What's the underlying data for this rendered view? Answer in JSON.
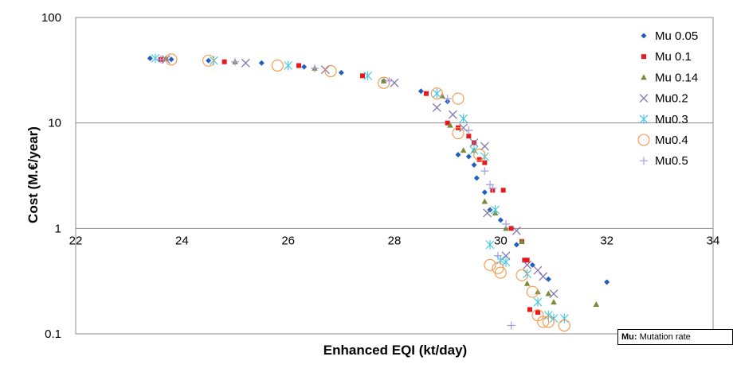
{
  "chart_data": {
    "type": "scatter",
    "title": "",
    "xlabel": "Enhanced EQI (kt/day)",
    "ylabel": "Cost (M.€/year)",
    "xlim": [
      22,
      34
    ],
    "ylim": [
      0.1,
      100
    ],
    "y_scale": "log",
    "x_ticks": [
      "22",
      "24",
      "26",
      "28",
      "30",
      "32",
      "34"
    ],
    "y_ticks": [
      "100",
      "10",
      "1",
      "0.1"
    ],
    "grid": "horizontal major gridlines",
    "legend_position": "top-right",
    "annotation": {
      "key": "Mu:",
      "text": " Mutation rate"
    },
    "series": [
      {
        "name": "Mu 0.05",
        "marker": "diamond",
        "color": "#1F5FBF",
        "points": [
          [
            23.4,
            41
          ],
          [
            23.8,
            40
          ],
          [
            24.5,
            39
          ],
          [
            25.5,
            37
          ],
          [
            26.3,
            34
          ],
          [
            27.0,
            30
          ],
          [
            27.8,
            25
          ],
          [
            28.5,
            20
          ],
          [
            29.0,
            16
          ],
          [
            29.2,
            5.0
          ],
          [
            29.4,
            4.8
          ],
          [
            29.5,
            4.0
          ],
          [
            29.55,
            3.0
          ],
          [
            29.7,
            2.2
          ],
          [
            29.8,
            1.5
          ],
          [
            30.0,
            1.2
          ],
          [
            30.3,
            0.7
          ],
          [
            30.6,
            0.45
          ],
          [
            30.9,
            0.33
          ],
          [
            32.0,
            0.31
          ]
        ]
      },
      {
        "name": "Mu 0.1",
        "marker": "square",
        "color": "#E8191E",
        "points": [
          [
            23.6,
            40
          ],
          [
            24.8,
            38
          ],
          [
            26.2,
            35
          ],
          [
            27.4,
            28
          ],
          [
            28.6,
            19
          ],
          [
            29.0,
            10
          ],
          [
            29.2,
            9.0
          ],
          [
            29.4,
            7.5
          ],
          [
            29.5,
            6.5
          ],
          [
            29.6,
            4.5
          ],
          [
            29.7,
            4.2
          ],
          [
            29.85,
            2.3
          ],
          [
            30.05,
            2.3
          ],
          [
            30.2,
            1.0
          ],
          [
            30.4,
            0.75
          ],
          [
            30.45,
            0.5
          ],
          [
            30.5,
            0.5
          ],
          [
            30.55,
            0.17
          ],
          [
            30.7,
            0.16
          ]
        ]
      },
      {
        "name": "Mu 0.14",
        "marker": "triangle",
        "color": "#7A8B3A",
        "points": [
          [
            23.7,
            41
          ],
          [
            25.0,
            38
          ],
          [
            26.5,
            33
          ],
          [
            27.8,
            25
          ],
          [
            28.9,
            18
          ],
          [
            29.05,
            9.5
          ],
          [
            29.3,
            5.5
          ],
          [
            29.5,
            5.5
          ],
          [
            29.7,
            1.8
          ],
          [
            29.9,
            1.4
          ],
          [
            30.1,
            1.0
          ],
          [
            30.4,
            0.75
          ],
          [
            30.5,
            0.3
          ],
          [
            30.7,
            0.25
          ],
          [
            30.9,
            0.24
          ],
          [
            31.0,
            0.2
          ],
          [
            31.8,
            0.19
          ]
        ]
      },
      {
        "name": "Mu0.2",
        "marker": "x",
        "color": "#7F6FA9",
        "points": [
          [
            23.7,
            40
          ],
          [
            25.2,
            37
          ],
          [
            26.7,
            32
          ],
          [
            28.0,
            24
          ],
          [
            28.8,
            14
          ],
          [
            29.1,
            12
          ],
          [
            29.3,
            9.0
          ],
          [
            29.5,
            6.5
          ],
          [
            29.7,
            6.0
          ],
          [
            29.75,
            1.4
          ],
          [
            30.1,
            0.55
          ],
          [
            30.3,
            0.95
          ],
          [
            30.5,
            0.45
          ],
          [
            30.7,
            0.4
          ],
          [
            30.8,
            0.35
          ],
          [
            31.0,
            0.24
          ]
        ]
      },
      {
        "name": "Mu0.3",
        "marker": "asterisk",
        "color": "#3FC7E0",
        "points": [
          [
            23.5,
            41
          ],
          [
            24.6,
            39
          ],
          [
            26.0,
            35
          ],
          [
            27.5,
            28
          ],
          [
            28.8,
            19
          ],
          [
            29.3,
            11
          ],
          [
            29.5,
            5.5
          ],
          [
            29.7,
            4.8
          ],
          [
            29.8,
            0.7
          ],
          [
            29.9,
            1.5
          ],
          [
            30.0,
            0.5
          ],
          [
            30.1,
            0.48
          ],
          [
            30.5,
            0.37
          ],
          [
            30.7,
            0.2
          ],
          [
            30.9,
            0.15
          ],
          [
            31.0,
            0.14
          ],
          [
            31.2,
            0.14
          ]
        ]
      },
      {
        "name": "Mu0.4",
        "marker": "circle",
        "color": "#F79646",
        "points": [
          [
            23.8,
            40
          ],
          [
            24.5,
            39
          ],
          [
            25.8,
            35
          ],
          [
            26.8,
            31
          ],
          [
            27.8,
            24
          ],
          [
            28.8,
            19
          ],
          [
            29.2,
            17
          ],
          [
            29.2,
            8.0
          ],
          [
            29.6,
            5.0
          ],
          [
            29.8,
            0.45
          ],
          [
            29.95,
            0.42
          ],
          [
            30.0,
            0.38
          ],
          [
            30.4,
            0.36
          ],
          [
            30.6,
            0.25
          ],
          [
            30.7,
            0.15
          ],
          [
            30.8,
            0.13
          ],
          [
            30.9,
            0.13
          ],
          [
            31.2,
            0.12
          ]
        ]
      },
      {
        "name": "Mu0.5",
        "marker": "plus",
        "color": "#A59BE0",
        "points": [
          [
            23.6,
            40
          ],
          [
            25.0,
            38
          ],
          [
            26.5,
            33
          ],
          [
            27.9,
            25
          ],
          [
            29.0,
            17
          ],
          [
            29.4,
            8.5
          ],
          [
            29.7,
            3.5
          ],
          [
            29.8,
            2.6
          ],
          [
            29.85,
            2.4
          ],
          [
            29.95,
            0.55
          ],
          [
            30.1,
            1.1
          ],
          [
            30.2,
            0.12
          ]
        ]
      }
    ]
  }
}
